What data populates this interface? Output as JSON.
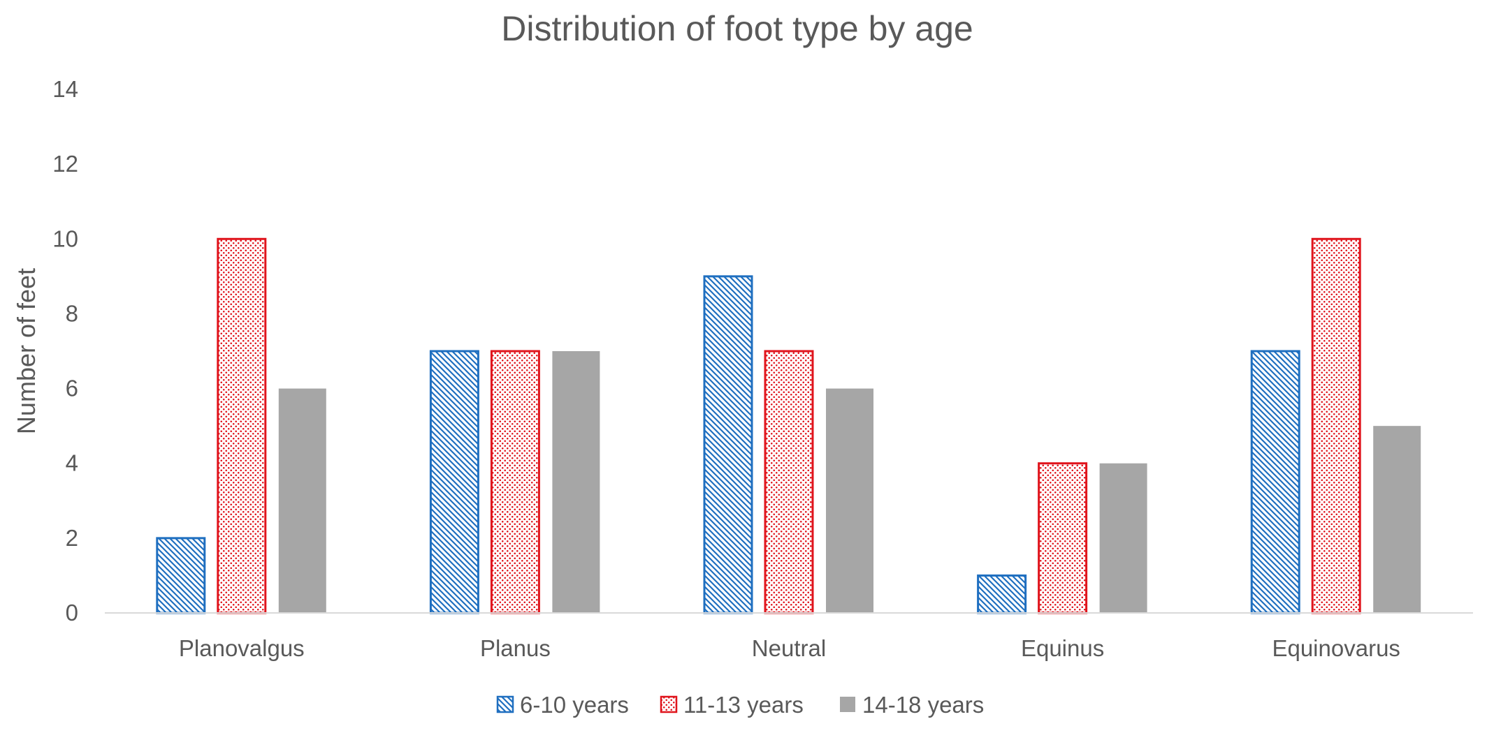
{
  "chart_data": {
    "type": "bar",
    "title": "Distribution of foot type by age",
    "ylabel": "Number of feet",
    "xlabel": "",
    "ylim": [
      0,
      14
    ],
    "yticks": [
      0,
      2,
      4,
      6,
      8,
      10,
      12,
      14
    ],
    "grid": false,
    "legend_position": "bottom",
    "categories": [
      "Planovalgus",
      "Planus",
      "Neutral",
      "Equinus",
      "Equinovarus"
    ],
    "series": [
      {
        "name": "6-10 years",
        "values": [
          2,
          7,
          9,
          1,
          7
        ],
        "color": "#1F6FC0",
        "pattern": "diagonal-hatch"
      },
      {
        "name": "11-13 years",
        "values": [
          10,
          7,
          7,
          4,
          10
        ],
        "color": "#E0141C",
        "pattern": "dotted"
      },
      {
        "name": "14-18 years",
        "values": [
          6,
          7,
          6,
          4,
          5
        ],
        "color": "#A6A6A6",
        "pattern": "solid"
      }
    ]
  }
}
